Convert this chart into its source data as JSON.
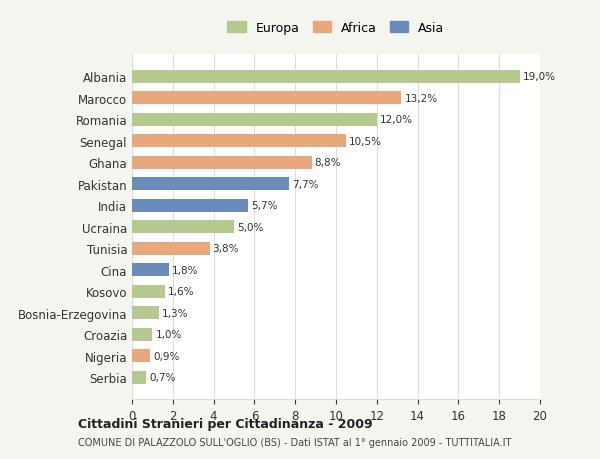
{
  "countries": [
    "Albania",
    "Marocco",
    "Romania",
    "Senegal",
    "Ghana",
    "Pakistan",
    "India",
    "Ucraina",
    "Tunisia",
    "Cina",
    "Kosovo",
    "Bosnia-Erzegovina",
    "Croazia",
    "Nigeria",
    "Serbia"
  ],
  "values": [
    19.0,
    13.2,
    12.0,
    10.5,
    8.8,
    7.7,
    5.7,
    5.0,
    3.8,
    1.8,
    1.6,
    1.3,
    1.0,
    0.9,
    0.7
  ],
  "labels": [
    "19,0%",
    "13,2%",
    "12,0%",
    "10,5%",
    "8,8%",
    "7,7%",
    "5,7%",
    "5,0%",
    "3,8%",
    "1,8%",
    "1,6%",
    "1,3%",
    "1,0%",
    "0,9%",
    "0,7%"
  ],
  "colors": [
    "#b5c98e",
    "#e8a87c",
    "#b5c98e",
    "#e8a87c",
    "#e8a87c",
    "#6b8cba",
    "#6b8cba",
    "#b5c98e",
    "#e8a87c",
    "#6b8cba",
    "#b5c98e",
    "#b5c98e",
    "#b5c98e",
    "#e8a87c",
    "#b5c98e"
  ],
  "legend_labels": [
    "Europa",
    "Africa",
    "Asia"
  ],
  "legend_colors": [
    "#b5c98e",
    "#e8a87c",
    "#6b8cba"
  ],
  "title_main": "Cittadini Stranieri per Cittadinanza - 2009",
  "title_sub": "COMUNE DI PALAZZOLO SULL'OGLIO (BS) - Dati ISTAT al 1° gennaio 2009 - TUTTITALIA.IT",
  "xlim": [
    0,
    20
  ],
  "xticks": [
    0,
    2,
    4,
    6,
    8,
    10,
    12,
    14,
    16,
    18,
    20
  ],
  "background_color": "#f5f5f0",
  "plot_bg_color": "#ffffff",
  "grid_color": "#dddddd"
}
